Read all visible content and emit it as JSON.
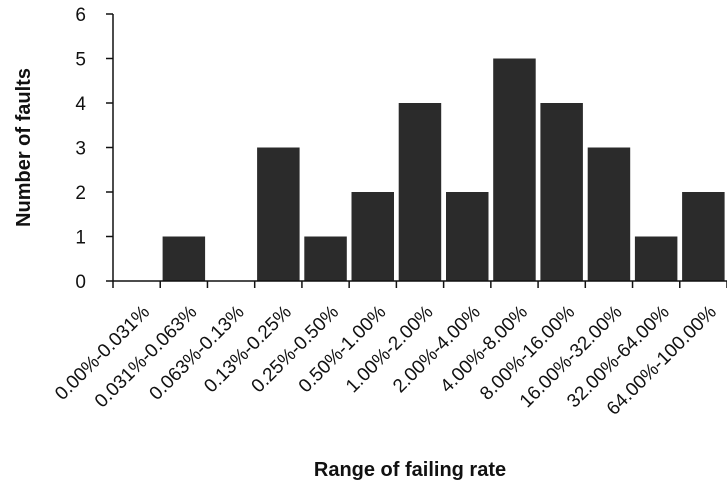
{
  "chart_data": {
    "type": "bar",
    "title": "",
    "xlabel": "Range of failing rate",
    "ylabel": "Number of faults",
    "ylim": [
      0,
      6
    ],
    "yticks": [
      "0",
      "1",
      "2",
      "3",
      "4",
      "5",
      "6"
    ],
    "grid": false,
    "legend": "none",
    "bar_color": "#2b2b2b",
    "categories": [
      "0.00%-0.031%",
      "0.031%-0.063%",
      "0.063%-0.13%",
      "0.13%-0.25%",
      "0.25%-0.50%",
      "0.50%-1.00%",
      "1.00%-2.00%",
      "2.00%-4.00%",
      "4.00%-8.00%",
      "8.00%-16.00%",
      "16.00%-32.00%",
      "32.00%-64.00%",
      "64.00%-100.00%"
    ],
    "values": [
      0,
      1,
      0,
      3,
      1,
      2,
      4,
      2,
      5,
      4,
      3,
      1,
      2
    ]
  }
}
